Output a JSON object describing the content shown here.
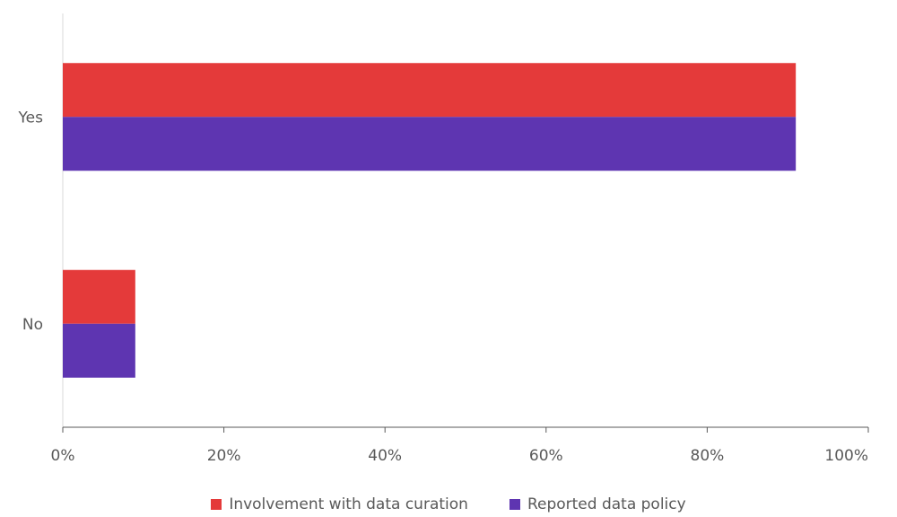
{
  "chart_data": {
    "type": "bar",
    "orientation": "horizontal",
    "categories": [
      "Yes",
      "No"
    ],
    "series": [
      {
        "name": "Involvement with data curation",
        "values": [
          91,
          9
        ],
        "color": "#e43a3a"
      },
      {
        "name": "Reported data policy",
        "values": [
          91,
          9
        ],
        "color": "#5e35b1"
      }
    ],
    "x_ticks": [
      "0%",
      "20%",
      "40%",
      "60%",
      "80%",
      "100%"
    ],
    "xlim": [
      0,
      100
    ],
    "xlabel": "",
    "ylabel": "",
    "title": "",
    "grid": false,
    "legend_position": "bottom"
  }
}
